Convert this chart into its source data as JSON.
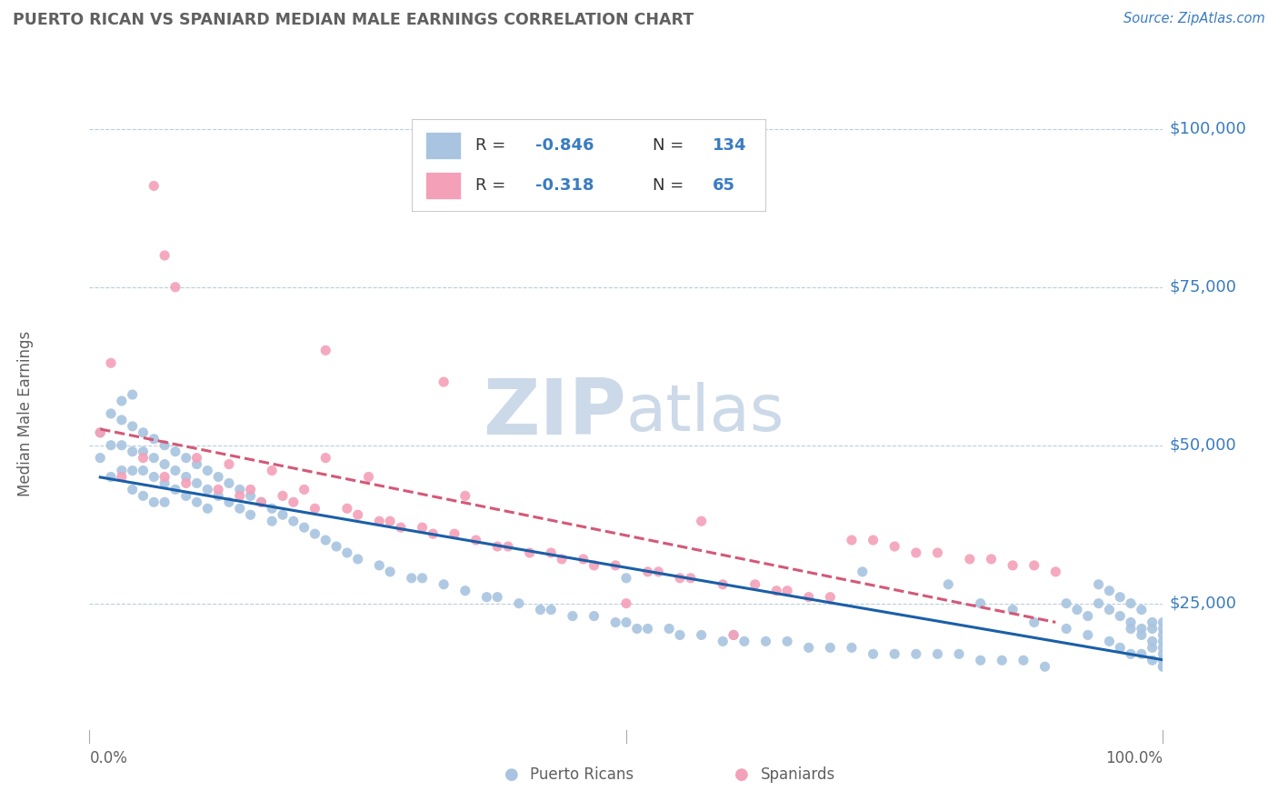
{
  "title": "PUERTO RICAN VS SPANIARD MEDIAN MALE EARNINGS CORRELATION CHART",
  "source_text": "Source: ZipAtlas.com",
  "ylabel": "Median Male Earnings",
  "xlim": [
    0,
    1
  ],
  "ylim": [
    5000,
    105000
  ],
  "ytick_labels": [
    "$25,000",
    "$50,000",
    "$75,000",
    "$100,000"
  ],
  "ytick_values": [
    25000,
    50000,
    75000,
    100000
  ],
  "xtick_labels": [
    "0.0%",
    "100.0%"
  ],
  "pr_color": "#a8c4e0",
  "sp_color": "#f4a0b8",
  "pr_line_color": "#1a5fa8",
  "sp_line_color": "#d45878",
  "bg_color": "#ffffff",
  "grid_color": "#b8cee0",
  "title_color": "#606060",
  "axis_label_color": "#606060",
  "ytick_color": "#3a7cc0",
  "watermark_color": "#ccd9e8",
  "legend_text_color": "#333333",
  "legend_val_color": "#3a7cc0",
  "pr_scatter_x": [
    0.01,
    0.01,
    0.02,
    0.02,
    0.02,
    0.03,
    0.03,
    0.03,
    0.04,
    0.04,
    0.04,
    0.04,
    0.05,
    0.05,
    0.05,
    0.05,
    0.06,
    0.06,
    0.06,
    0.06,
    0.07,
    0.07,
    0.07,
    0.07,
    0.08,
    0.08,
    0.08,
    0.09,
    0.09,
    0.09,
    0.1,
    0.1,
    0.1,
    0.11,
    0.11,
    0.11,
    0.12,
    0.12,
    0.13,
    0.13,
    0.14,
    0.14,
    0.15,
    0.15,
    0.16,
    0.17,
    0.17,
    0.18,
    0.19,
    0.2,
    0.21,
    0.22,
    0.23,
    0.24,
    0.25,
    0.27,
    0.28,
    0.3,
    0.31,
    0.33,
    0.35,
    0.37,
    0.38,
    0.4,
    0.42,
    0.43,
    0.45,
    0.47,
    0.49,
    0.5,
    0.51,
    0.52,
    0.54,
    0.55,
    0.57,
    0.59,
    0.61,
    0.63,
    0.65,
    0.67,
    0.69,
    0.71,
    0.73,
    0.75,
    0.77,
    0.79,
    0.81,
    0.83,
    0.85,
    0.87,
    0.89,
    0.91,
    0.92,
    0.93,
    0.94,
    0.94,
    0.95,
    0.95,
    0.96,
    0.96,
    0.97,
    0.97,
    0.97,
    0.98,
    0.98,
    0.98,
    0.99,
    0.99,
    0.99,
    0.99,
    1.0,
    1.0,
    1.0,
    1.0,
    1.0,
    1.0,
    1.0,
    1.0,
    0.5,
    0.6,
    0.72,
    0.8,
    0.83,
    0.86,
    0.88,
    0.91,
    0.93,
    0.95,
    0.96,
    0.97,
    0.98,
    0.99,
    1.0,
    0.03,
    0.04
  ],
  "pr_scatter_y": [
    52000,
    48000,
    55000,
    50000,
    45000,
    54000,
    50000,
    46000,
    53000,
    49000,
    46000,
    43000,
    52000,
    49000,
    46000,
    42000,
    51000,
    48000,
    45000,
    41000,
    50000,
    47000,
    44000,
    41000,
    49000,
    46000,
    43000,
    48000,
    45000,
    42000,
    47000,
    44000,
    41000,
    46000,
    43000,
    40000,
    45000,
    42000,
    44000,
    41000,
    43000,
    40000,
    42000,
    39000,
    41000,
    40000,
    38000,
    39000,
    38000,
    37000,
    36000,
    35000,
    34000,
    33000,
    32000,
    31000,
    30000,
    29000,
    29000,
    28000,
    27000,
    26000,
    26000,
    25000,
    24000,
    24000,
    23000,
    23000,
    22000,
    22000,
    21000,
    21000,
    21000,
    20000,
    20000,
    19000,
    19000,
    19000,
    19000,
    18000,
    18000,
    18000,
    17000,
    17000,
    17000,
    17000,
    17000,
    16000,
    16000,
    16000,
    15000,
    25000,
    24000,
    23000,
    28000,
    25000,
    27000,
    24000,
    26000,
    23000,
    25000,
    22000,
    21000,
    24000,
    21000,
    20000,
    22000,
    21000,
    19000,
    18000,
    22000,
    21000,
    20000,
    19000,
    18000,
    17000,
    16000,
    15000,
    29000,
    20000,
    30000,
    28000,
    25000,
    24000,
    22000,
    21000,
    20000,
    19000,
    18000,
    17000,
    17000,
    16000,
    15000,
    57000,
    58000
  ],
  "sp_scatter_x": [
    0.01,
    0.02,
    0.03,
    0.05,
    0.06,
    0.07,
    0.08,
    0.09,
    0.1,
    0.12,
    0.13,
    0.14,
    0.15,
    0.16,
    0.17,
    0.18,
    0.19,
    0.2,
    0.21,
    0.22,
    0.24,
    0.25,
    0.26,
    0.27,
    0.28,
    0.29,
    0.31,
    0.32,
    0.34,
    0.35,
    0.36,
    0.38,
    0.39,
    0.41,
    0.43,
    0.44,
    0.46,
    0.47,
    0.49,
    0.5,
    0.52,
    0.53,
    0.55,
    0.56,
    0.57,
    0.59,
    0.6,
    0.62,
    0.64,
    0.65,
    0.67,
    0.69,
    0.71,
    0.73,
    0.75,
    0.77,
    0.79,
    0.82,
    0.84,
    0.86,
    0.88,
    0.9,
    0.07,
    0.22,
    0.33
  ],
  "sp_scatter_y": [
    52000,
    63000,
    45000,
    48000,
    91000,
    45000,
    75000,
    44000,
    48000,
    43000,
    47000,
    42000,
    43000,
    41000,
    46000,
    42000,
    41000,
    43000,
    40000,
    65000,
    40000,
    39000,
    45000,
    38000,
    38000,
    37000,
    37000,
    36000,
    36000,
    42000,
    35000,
    34000,
    34000,
    33000,
    33000,
    32000,
    32000,
    31000,
    31000,
    25000,
    30000,
    30000,
    29000,
    29000,
    38000,
    28000,
    20000,
    28000,
    27000,
    27000,
    26000,
    26000,
    35000,
    35000,
    34000,
    33000,
    33000,
    32000,
    32000,
    31000,
    31000,
    30000,
    80000,
    48000,
    60000
  ]
}
